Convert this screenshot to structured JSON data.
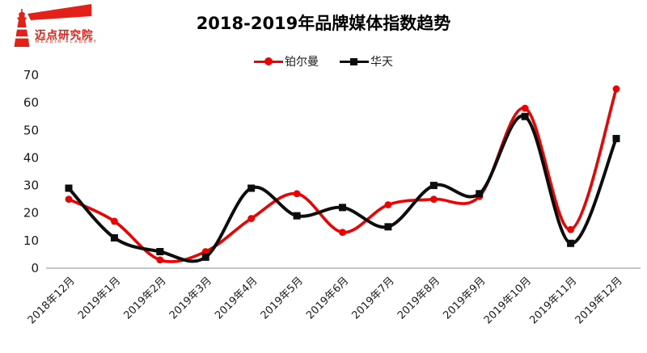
{
  "logo": {
    "name": "迈点研究院",
    "subtitle": "MEADIN ACADEMY",
    "color": "#e32119"
  },
  "title": "2018-2019年品牌媒体指数趋势",
  "chart_data": {
    "type": "line",
    "smooth": true,
    "title": "2018-2019年品牌媒体指数趋势",
    "categories": [
      "2018年12月",
      "2019年1月",
      "2019年2月",
      "2019年3月",
      "2019年4月",
      "2019年5月",
      "2019年6月",
      "2019年7月",
      "2019年8月",
      "2019年9月",
      "2019年10月",
      "2019年11月",
      "2019年12月"
    ],
    "series": [
      {
        "name": "铂尔曼",
        "color": "#f10000",
        "marker": "circle",
        "values": [
          25,
          17,
          3,
          6,
          18,
          27,
          13,
          23,
          25,
          26,
          58,
          14,
          65
        ]
      },
      {
        "name": "华天",
        "color": "#0d0d0d",
        "marker": "square",
        "values": [
          29,
          11,
          6,
          4,
          29,
          19,
          22,
          15,
          30,
          27,
          55,
          9,
          47
        ]
      }
    ],
    "xlabel": "",
    "ylabel": "",
    "ylim": [
      0,
      70
    ],
    "ytick_step": 10,
    "grid": false,
    "legend_position": "top",
    "axis_line_color": "#b3b3b3"
  }
}
